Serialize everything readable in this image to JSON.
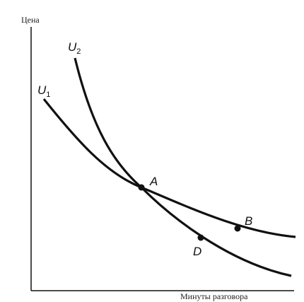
{
  "axes": {
    "y_label": "Цена",
    "x_label": "Минуты разговора"
  },
  "curves": [
    {
      "label": "U",
      "subscript": "1"
    },
    {
      "label": "U",
      "subscript": "2"
    }
  ],
  "points": [
    {
      "label": "A"
    },
    {
      "label": "B"
    },
    {
      "label": "D"
    }
  ]
}
